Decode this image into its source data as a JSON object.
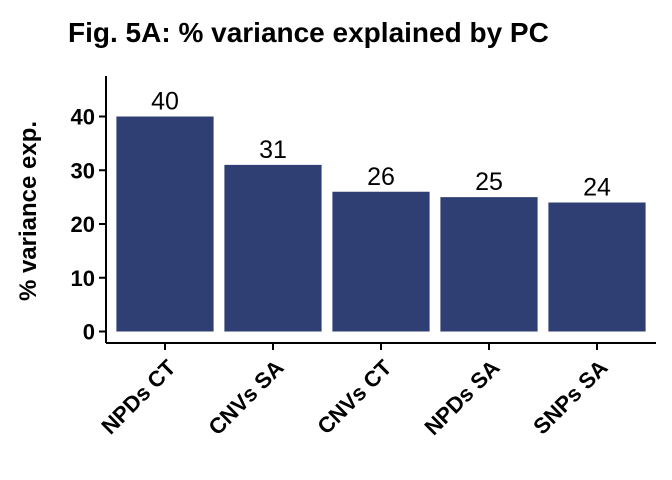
{
  "chart_data": {
    "type": "bar",
    "title": "Fig. 5A: % variance explained by PC",
    "xlabel": "",
    "ylabel": "% variance exp.",
    "categories": [
      "NPDs CT",
      "CNVs SA",
      "CNVs CT",
      "NPDs SA",
      "SNPs SA"
    ],
    "values": [
      40,
      31,
      26,
      25,
      24
    ],
    "data_labels": [
      "40",
      "31",
      "26",
      "25",
      "24"
    ],
    "yticks": [
      0,
      10,
      20,
      30,
      40
    ],
    "ylim": [
      -2,
      48
    ],
    "bar_color": "#2f3f73",
    "grid": false,
    "legend": "none"
  }
}
